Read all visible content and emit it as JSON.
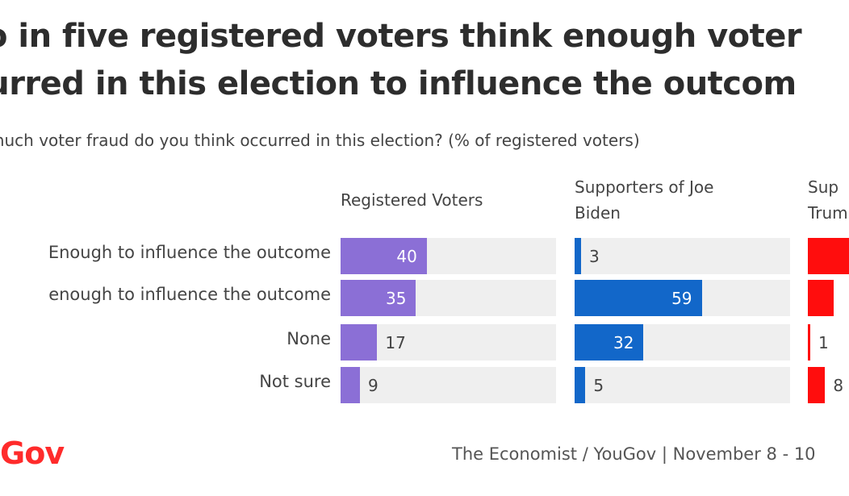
{
  "title": {
    "line1": "o in five registered voters think enough voter",
    "line2": "curred in this election to influence the outcom"
  },
  "subtitle": "much voter fraud do you think occurred in this election? (% of registered voters)",
  "logo": "uGov",
  "source": "The Economist / YouGov | November 8 - 10",
  "colors": {
    "registered": "#8b6fd6",
    "biden": "#1267c9",
    "trump": "#ff0d0d",
    "track": "#efefef"
  },
  "chart_data": {
    "type": "bar",
    "orientation": "horizontal",
    "categories": [
      "Enough to influence the outcome",
      "enough to influence the outcome",
      "None",
      "Not sure"
    ],
    "xlim": [
      0,
      100
    ],
    "series": [
      {
        "name": "Registered Voters",
        "values": [
          40,
          35,
          17,
          9
        ]
      },
      {
        "name": "Supporters of Joe\nBiden",
        "values": [
          3,
          59,
          32,
          5
        ]
      },
      {
        "name": "Sup\nTrum",
        "values": [
          null,
          null,
          1,
          8
        ]
      }
    ]
  }
}
